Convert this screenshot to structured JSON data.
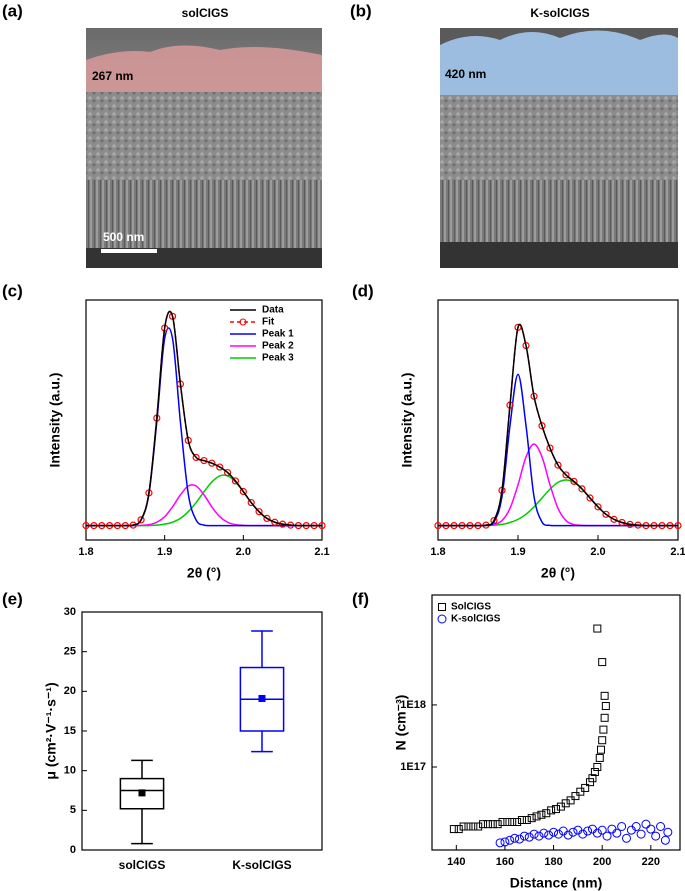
{
  "images": [
    {
      "label": "(a)",
      "title": "solCIGS",
      "thickness": "267 nm",
      "scale_bar": "500 nm"
    },
    {
      "label": "(b)",
      "title": "K-solCIGS",
      "thickness": "420 nm"
    }
  ],
  "chart_data": [
    {
      "type": "line",
      "label": "(c)",
      "xlabel": "2θ (°)",
      "ylabel": "Intensity (a.u.)",
      "legend": "upper right",
      "x": [
        1.8,
        1.81,
        1.82,
        1.83,
        1.84,
        1.85,
        1.86,
        1.87,
        1.88,
        1.89,
        1.9,
        1.91,
        1.92,
        1.93,
        1.94,
        1.95,
        1.96,
        1.97,
        1.98,
        1.99,
        2,
        2.01,
        2.02,
        2.03,
        2.04,
        2.05,
        2.06,
        2.07,
        2.08,
        2.09,
        2.1
      ],
      "xlim": [
        1.8,
        2.1
      ],
      "xticks": [
        1.8,
        1.9,
        {
          "value": 2,
          "label": "2.0"
        },
        2.1
      ],
      "ylim": [
        0,
        100
      ],
      "series": [
        {
          "name": "Data",
          "color": "#000000",
          "values": [
            6,
            6,
            6,
            6,
            6,
            6,
            6.2,
            8.4,
            19.6,
            50.8,
            88.3,
            93.2,
            65,
            41.5,
            34.4,
            33.1,
            32,
            30.4,
            28.1,
            24.6,
            20.2,
            15.6,
            11.8,
            9,
            7.4,
            6.6,
            6.2,
            6,
            6,
            6,
            6
          ]
        },
        {
          "name": "Fit",
          "color": "#ff0000",
          "dash": true,
          "marker": "circle",
          "values": [
            6,
            6,
            6,
            6,
            6,
            6,
            6.2,
            8.4,
            19.6,
            50.8,
            88.3,
            93.2,
            65,
            41.5,
            34.4,
            33.1,
            32,
            30.4,
            28.1,
            24.6,
            20.2,
            15.6,
            11.8,
            9,
            7.4,
            6.6,
            6.2,
            6,
            6,
            6,
            6
          ]
        },
        {
          "name": "Peak 1",
          "color": "#0000ff",
          "values": [
            6,
            6,
            6,
            6,
            6,
            6,
            6.2,
            8.3,
            19.2,
            49.2,
            84,
            84,
            49.2,
            19.2,
            8.3,
            6.2,
            6,
            6,
            6,
            6,
            6,
            6,
            6,
            6,
            6,
            6,
            6,
            6,
            6,
            6,
            6
          ]
        },
        {
          "name": "Peak 2",
          "color": "#ff00ff",
          "values": [
            6,
            6,
            6,
            6,
            6,
            6,
            6,
            6.1,
            6.4,
            7.4,
            9.7,
            13.8,
            18.8,
            22.5,
            22.5,
            18.8,
            13.8,
            9.7,
            7.4,
            6.4,
            6.1,
            6,
            6,
            6,
            6,
            6,
            6,
            6,
            6,
            6,
            6
          ]
        },
        {
          "name": "Peak 3",
          "color": "#00cc00",
          "values": [
            6,
            6,
            6,
            6,
            6,
            6,
            6,
            6,
            6,
            6.2,
            6.6,
            7.4,
            9,
            11.8,
            15.6,
            20.1,
            24.2,
            26.7,
            26.7,
            24.2,
            20.1,
            15.6,
            11.8,
            9,
            7.4,
            6.6,
            6.2,
            6,
            6,
            6,
            6
          ]
        }
      ]
    },
    {
      "type": "line",
      "label": "(d)",
      "xlabel": "2θ (°)",
      "ylabel": "Intensity (a.u.)",
      "x": [
        1.8,
        1.81,
        1.82,
        1.83,
        1.84,
        1.85,
        1.86,
        1.87,
        1.88,
        1.89,
        1.9,
        1.91,
        1.92,
        1.93,
        1.94,
        1.95,
        1.96,
        1.97,
        1.98,
        1.99,
        2,
        2.01,
        2.02,
        2.03,
        2.04,
        2.05,
        2.06,
        2.07,
        2.08,
        2.09,
        2.1
      ],
      "xlim": [
        1.8,
        2.1
      ],
      "xticks": [
        1.8,
        1.9,
        {
          "value": 2,
          "label": "2.0"
        },
        2.1
      ],
      "ylim": [
        0,
        100
      ],
      "series": [
        {
          "color": "#000000",
          "values": [
            6,
            6,
            6,
            6,
            6,
            6,
            6.2,
            8.1,
            20.7,
            56.2,
            88.6,
            81,
            59.9,
            47.6,
            38.3,
            31.2,
            27.1,
            24.4,
            21.3,
            17.5,
            13.8,
            10.7,
            8.6,
            7.3,
            6.5,
            6.2,
            6,
            6,
            6,
            6,
            6
          ]
        },
        {
          "color": "#ff0000",
          "dash": true,
          "marker": "circle",
          "values": [
            6,
            6,
            6,
            6,
            6,
            6,
            6.2,
            8.1,
            20.7,
            56.2,
            88.6,
            81,
            59.9,
            47.6,
            38.3,
            31.2,
            27.1,
            24.4,
            21.3,
            17.5,
            13.8,
            10.7,
            8.6,
            7.3,
            6.5,
            6.2,
            6,
            6,
            6,
            6,
            6
          ]
        },
        {
          "color": "#0000ff",
          "values": [
            6,
            6,
            6,
            6,
            6,
            6,
            6.1,
            7.5,
            18.1,
            47.7,
            69,
            47.7,
            18.1,
            7.5,
            6.1,
            6,
            6,
            6,
            6,
            6,
            6,
            6,
            6,
            6,
            6,
            6,
            6,
            6,
            6,
            6,
            6
          ]
        },
        {
          "color": "#ff00ff",
          "values": [
            6,
            6,
            6,
            6,
            6,
            6,
            6.1,
            6.4,
            8.1,
            13.2,
            23,
            34.6,
            40,
            34.6,
            23,
            13.2,
            8.1,
            6.4,
            6.1,
            6,
            6,
            6,
            6,
            6,
            6,
            6,
            6,
            6,
            6,
            6,
            6
          ]
        },
        {
          "color": "#00cc00",
          "values": [
            6,
            6,
            6,
            6,
            6,
            6,
            6,
            6.2,
            6.5,
            7.3,
            8.6,
            10.7,
            13.8,
            17.5,
            21.2,
            24,
            25,
            24,
            21.2,
            17.5,
            13.8,
            10.7,
            8.6,
            7.3,
            6.5,
            6.2,
            6,
            6,
            6,
            6,
            6
          ]
        }
      ]
    },
    {
      "type": "box",
      "label": "(e)",
      "ylabel": "μ (cm²·V⁻¹·s⁻¹)",
      "categories": [
        "solCIGS",
        "K-solCIGS"
      ],
      "ylim": [
        0,
        30
      ],
      "yticks": [
        0,
        5,
        10,
        15,
        20,
        25,
        30
      ],
      "boxes": [
        {
          "color": "#000000",
          "min": 0.8,
          "q1": 5.2,
          "median": 7.5,
          "q3": 9,
          "max": 11.3,
          "mean": 7.2
        },
        {
          "color": "#0000ff",
          "min": 12.4,
          "q1": 15,
          "median": 19,
          "q3": 23,
          "max": 27.6,
          "mean": 19.1
        }
      ]
    },
    {
      "type": "scatter",
      "label": "(f)",
      "xlabel": "Distance (nm)",
      "ylabel": "N (cm⁻³)",
      "log_y": true,
      "legend": "upper left",
      "xlim": [
        130,
        232
      ],
      "xticks": [
        140,
        160,
        180,
        200,
        220
      ],
      "ylim": [
        4600000000000000.0,
        5.9e+19
      ],
      "yticks": [
        {
          "value": 1e+17,
          "label": "1E17"
        },
        {
          "value": 1e+18,
          "label": "1E18"
        }
      ],
      "series": [
        {
          "name": "SolCIGS",
          "color": "#000000",
          "marker": "square",
          "x": [
            139,
            141,
            143,
            145,
            147,
            149,
            151,
            153,
            155,
            157,
            159,
            161,
            163,
            165,
            167,
            169,
            171,
            173,
            175,
            177,
            179,
            181,
            183,
            185,
            187,
            189,
            191,
            193,
            195,
            196,
            197,
            198,
            199,
            199.5,
            200,
            200.5,
            201,
            201.5,
            201,
            200,
            198
          ],
          "values": [
            1e+16,
            1e+16,
            1.1e+16,
            1.1e+16,
            1.1e+16,
            1.1e+16,
            1.2e+16,
            1.2e+16,
            1.2e+16,
            1.2e+16,
            1.3e+16,
            1.3e+16,
            1.3e+16,
            1.3e+16,
            1.4e+16,
            1.4e+16,
            1.5e+16,
            1.6e+16,
            1.7e+16,
            1.8e+16,
            2e+16,
            2.1e+16,
            2.3e+16,
            2.6e+16,
            2.9e+16,
            3.4e+16,
            4e+16,
            4.6e+16,
            5.7e+16,
            6.6e+16,
            8.3e+16,
            1e+17,
            1.4e+17,
            1.9e+17,
            2.7e+17,
            4e+17,
            6.2e+17,
            9.6e+17,
            1.4e+18,
            4.9e+18,
            1.7e+19
          ]
        },
        {
          "name": "K-solCIGS",
          "color": "#0000ff",
          "marker": "circle",
          "x": [
            158,
            160,
            162,
            164,
            166,
            168,
            170,
            172,
            174,
            176,
            178,
            180,
            182,
            184,
            186,
            188,
            190,
            192,
            194,
            196,
            198,
            200,
            202,
            204,
            206,
            208,
            210,
            212,
            214,
            216,
            218,
            220,
            222,
            224,
            226,
            227
          ],
          "values": [
            6000000000000000.0,
            6200000000000000.0,
            6600000000000000.0,
            7100000000000000.0,
            6900000000000000.0,
            7700000000000000.0,
            7400000000000000.0,
            8300000000000000.0,
            7700000000000000.0,
            8600000000000000.0,
            8000000000000000.0,
            8900000000000000.0,
            8300000000000000.0,
            9300000000000000.0,
            8000000000000000.0,
            8900000000000000.0,
            9600000000000000.0,
            8300000000000000.0,
            9300000000000000.0,
            1e+16,
            8600000000000000.0,
            9600000000000000.0,
            7700000000000000.0,
            1e+16,
            8600000000000000.0,
            1.1e+16,
            7100000000000000.0,
            9600000000000000.0,
            1.1e+16,
            8300000000000000.0,
            1.2e+16,
            1e+16,
            7700000000000000.0,
            1.1e+16,
            6600000000000000.0,
            8900000000000000.0
          ]
        }
      ]
    }
  ]
}
